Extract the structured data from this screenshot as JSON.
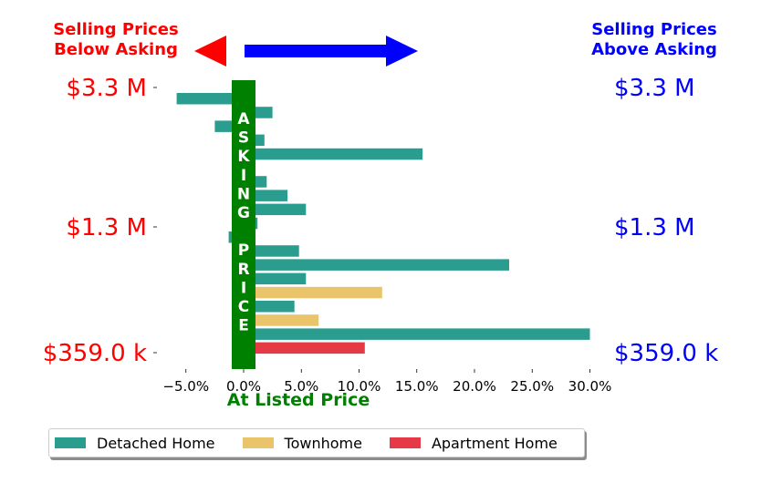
{
  "header": {
    "left_title_line1": "Selling Prices",
    "left_title_line2": "Below Asking",
    "right_title_line1": "Selling Prices",
    "right_title_line2": "Above Asking"
  },
  "band_letters": [
    "A",
    "S",
    "K",
    "I",
    "N",
    "G",
    "",
    "P",
    "R",
    "I",
    "C",
    "E"
  ],
  "center_label": "At Listed Price",
  "colors": {
    "detached": "#2a9d8f",
    "townhome": "#e9c46a",
    "apartment": "#e63946",
    "below": "#ff0000",
    "above": "#0000ff",
    "band": "#008000"
  },
  "legend": {
    "items": [
      {
        "label": "Detached Home",
        "color": "#2a9d8f"
      },
      {
        "label": "Townhome",
        "color": "#e9c46a"
      },
      {
        "label": "Apartment Home",
        "color": "#e63946"
      }
    ]
  },
  "chart_data": {
    "type": "bar",
    "orientation": "horizontal",
    "xlim": [
      -8,
      31
    ],
    "xticks": [
      -5,
      0,
      5,
      10,
      15,
      20,
      25,
      30
    ],
    "xtick_labels": [
      "−5.0%",
      "0.0%",
      "5.0%",
      "10.0%",
      "15.0%",
      "20.0%",
      "25.0%",
      "30.0%"
    ],
    "y_labels_left": [
      "$3.3 M",
      "$1.3 M",
      "$359.0 k"
    ],
    "y_labels_right": [
      "$3.3 M",
      "$1.3 M",
      "$359.0 k"
    ],
    "series_names": {
      "detached": "Detached Home",
      "townhome": "Townhome",
      "apartment": "Apartment Home"
    },
    "bars": [
      {
        "series": "detached",
        "value": -5.8
      },
      {
        "series": "detached",
        "value": 2.5
      },
      {
        "series": "detached",
        "value": -2.5
      },
      {
        "series": "detached",
        "value": 1.8
      },
      {
        "series": "detached",
        "value": 15.5
      },
      {
        "series": "detached",
        "value": 1.0
      },
      {
        "series": "detached",
        "value": 2.0
      },
      {
        "series": "detached",
        "value": 3.8
      },
      {
        "series": "detached",
        "value": 5.4
      },
      {
        "series": "detached",
        "value": 1.2
      },
      {
        "series": "detached",
        "value": -1.3
      },
      {
        "series": "detached",
        "value": 4.8
      },
      {
        "series": "detached",
        "value": 23.0
      },
      {
        "series": "detached",
        "value": 5.4
      },
      {
        "series": "townhome",
        "value": 12.0
      },
      {
        "series": "detached",
        "value": 4.4
      },
      {
        "series": "townhome",
        "value": 6.5
      },
      {
        "series": "detached",
        "value": 30.0
      },
      {
        "series": "apartment",
        "value": 10.5
      }
    ]
  }
}
